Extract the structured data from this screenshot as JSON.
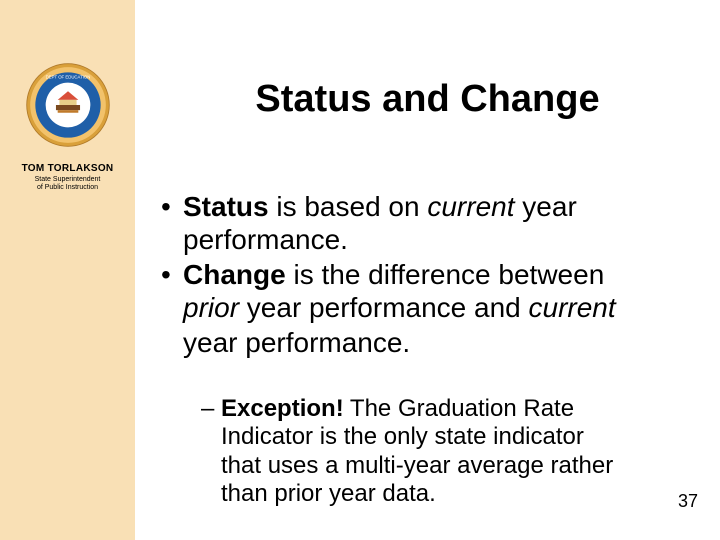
{
  "sidebar": {
    "background_color": "#f9e0b5",
    "name": "TOM TORLAKSON",
    "subtitle_line1": "State Superintendent",
    "subtitle_line2": "of Public Instruction",
    "seal": {
      "outer_ring_color": "#d9a03a",
      "inner_color": "#1f5fa8",
      "highlight_color": "#f2c26b",
      "center_color": "#ffffff"
    }
  },
  "slide": {
    "title": "Status and Change",
    "title_fontsize": 38,
    "body_fontsize": 28,
    "sub_fontsize": 24,
    "bullets": [
      {
        "runs": [
          {
            "t": "Status",
            "bold": true
          },
          {
            "t": " is based on "
          },
          {
            "t": "current",
            "ital": true
          },
          {
            "t": " year"
          }
        ],
        "cont": "performance."
      },
      {
        "runs": [
          {
            "t": "Change",
            "bold": true
          },
          {
            "t": " is the difference between"
          }
        ],
        "cont_runs": [
          {
            "t": "prior",
            "ital": true
          },
          {
            "t": " year performance and "
          },
          {
            "t": "current",
            "ital": true
          }
        ],
        "cont2": "year performance."
      }
    ],
    "sub_bullet": {
      "line1_runs": [
        {
          "t": "Exception!",
          "bold": true
        },
        {
          "t": " The Graduation Rate"
        }
      ],
      "line2": "Indicator is the only state indicator",
      "line3": "that uses a multi-year average rather",
      "line4": "than prior year data."
    },
    "page_number": "37"
  }
}
